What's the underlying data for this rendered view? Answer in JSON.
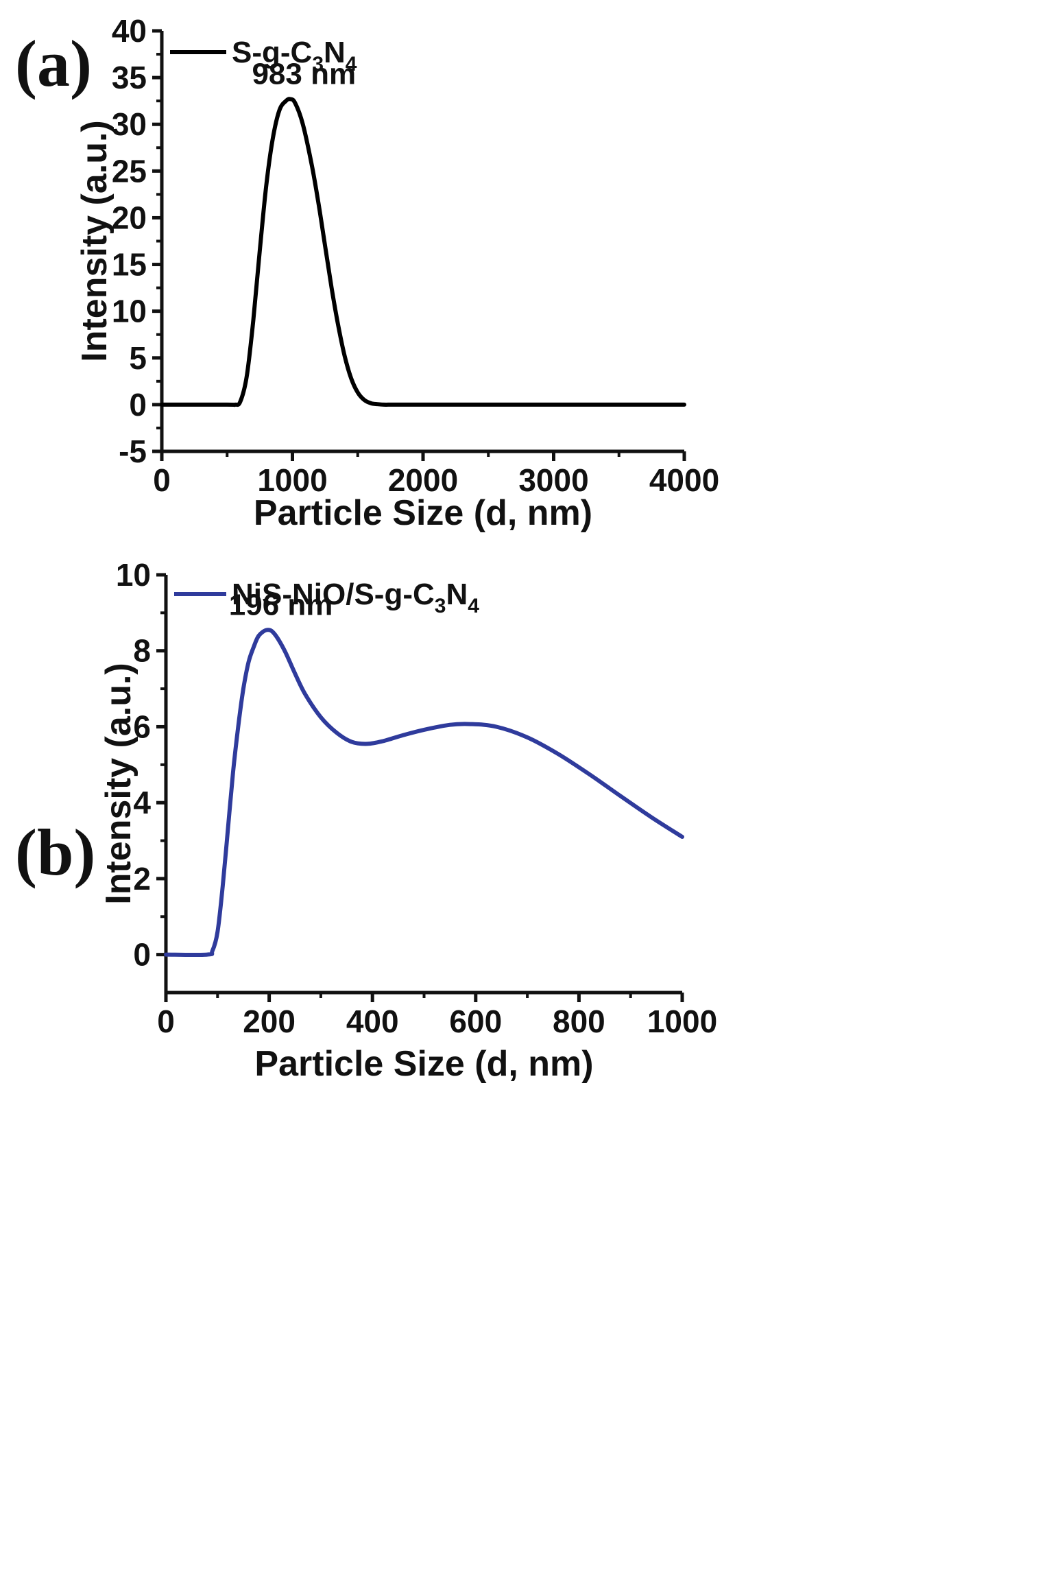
{
  "chart_data": [
    {
      "id": "a",
      "panel_label": "(a)",
      "type": "line",
      "xlabel": "Particle Size (d, nm)",
      "ylabel": "Intensity (a.u.)",
      "xlim": [
        0,
        4000
      ],
      "ylim": [
        -5,
        40
      ],
      "xticks": [
        0,
        1000,
        2000,
        3000,
        4000
      ],
      "yticks": [
        -5,
        0,
        5,
        10,
        15,
        20,
        25,
        30,
        35,
        40
      ],
      "grid": false,
      "legend_position": "top-left",
      "color": "#000000",
      "series": [
        {
          "name": "S-g-C3N4",
          "legend_parts": {
            "base": "S-g-C",
            "sub1": "3",
            "mid": "N",
            "sub2": "4"
          },
          "x": [
            0,
            500,
            560,
            600,
            650,
            700,
            750,
            800,
            850,
            900,
            950,
            983,
            1020,
            1080,
            1150,
            1200,
            1250,
            1300,
            1350,
            1400,
            1450,
            1500,
            1550,
            1600,
            1650,
            1700,
            1750,
            1800,
            2000,
            2500,
            3000,
            3500,
            4000
          ],
          "y": [
            0,
            0,
            0,
            0.3,
            3,
            9,
            16.5,
            23.5,
            28.5,
            31.5,
            32.5,
            32.7,
            32.3,
            30,
            25.5,
            21.5,
            17,
            12.5,
            8.5,
            5.2,
            2.8,
            1.3,
            0.5,
            0.15,
            0.05,
            0,
            0,
            0,
            0,
            0,
            0,
            0,
            0
          ]
        }
      ],
      "annotations": [
        {
          "text": "983 nm",
          "x": 983,
          "y": 32.7
        }
      ]
    },
    {
      "id": "b",
      "panel_label": "(b)",
      "type": "line",
      "xlabel": "Particle Size (d, nm)",
      "ylabel": "Intensity (a.u.)",
      "xlim": [
        0,
        1000
      ],
      "ylim": [
        -1,
        10
      ],
      "xticks": [
        0,
        200,
        400,
        600,
        800,
        1000
      ],
      "yticks": [
        0,
        2,
        4,
        6,
        8,
        10
      ],
      "grid": false,
      "legend_position": "top-left",
      "color": "#2f3b9c",
      "series": [
        {
          "name": "NiS-NiO/S-g-C3N4",
          "legend_parts": {
            "base": "NiS-NiO/S-g-C",
            "sub1": "3",
            "mid": "N",
            "sub2": "4"
          },
          "x": [
            0,
            80,
            90,
            100,
            110,
            120,
            130,
            140,
            150,
            160,
            170,
            180,
            196,
            210,
            230,
            250,
            270,
            300,
            330,
            360,
            390,
            420,
            460,
            500,
            550,
            590,
            640,
            700,
            760,
            820,
            880,
            940,
            1000
          ],
          "y": [
            0,
            0,
            0.1,
            0.6,
            1.8,
            3.3,
            4.8,
            6.0,
            7.0,
            7.7,
            8.1,
            8.4,
            8.55,
            8.45,
            8.0,
            7.4,
            6.85,
            6.25,
            5.85,
            5.6,
            5.55,
            5.62,
            5.78,
            5.92,
            6.05,
            6.07,
            6.0,
            5.72,
            5.28,
            4.75,
            4.18,
            3.62,
            3.1
          ]
        }
      ],
      "annotations": [
        {
          "text": "196 nm",
          "x": 196,
          "y": 8.55
        }
      ]
    }
  ]
}
